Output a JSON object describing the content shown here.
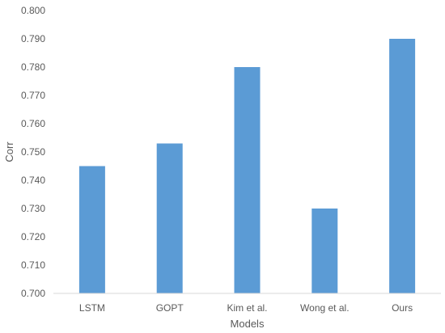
{
  "chart_data": {
    "type": "bar",
    "title": "",
    "xlabel": "Models",
    "ylabel": "Corr",
    "categories": [
      "LSTM",
      "GOPT",
      "Kim et al.",
      "Wong et al.",
      "Ours"
    ],
    "values": [
      0.745,
      0.753,
      0.78,
      0.73,
      0.79
    ],
    "ylim": [
      0.7,
      0.8
    ],
    "yticks": [
      "0.700",
      "0.710",
      "0.720",
      "0.730",
      "0.740",
      "0.750",
      "0.760",
      "0.770",
      "0.780",
      "0.790",
      "0.800"
    ],
    "grid": false,
    "legend": "none",
    "bar_color": "#5b9bd5",
    "axis_color": "#d9d9d9"
  }
}
